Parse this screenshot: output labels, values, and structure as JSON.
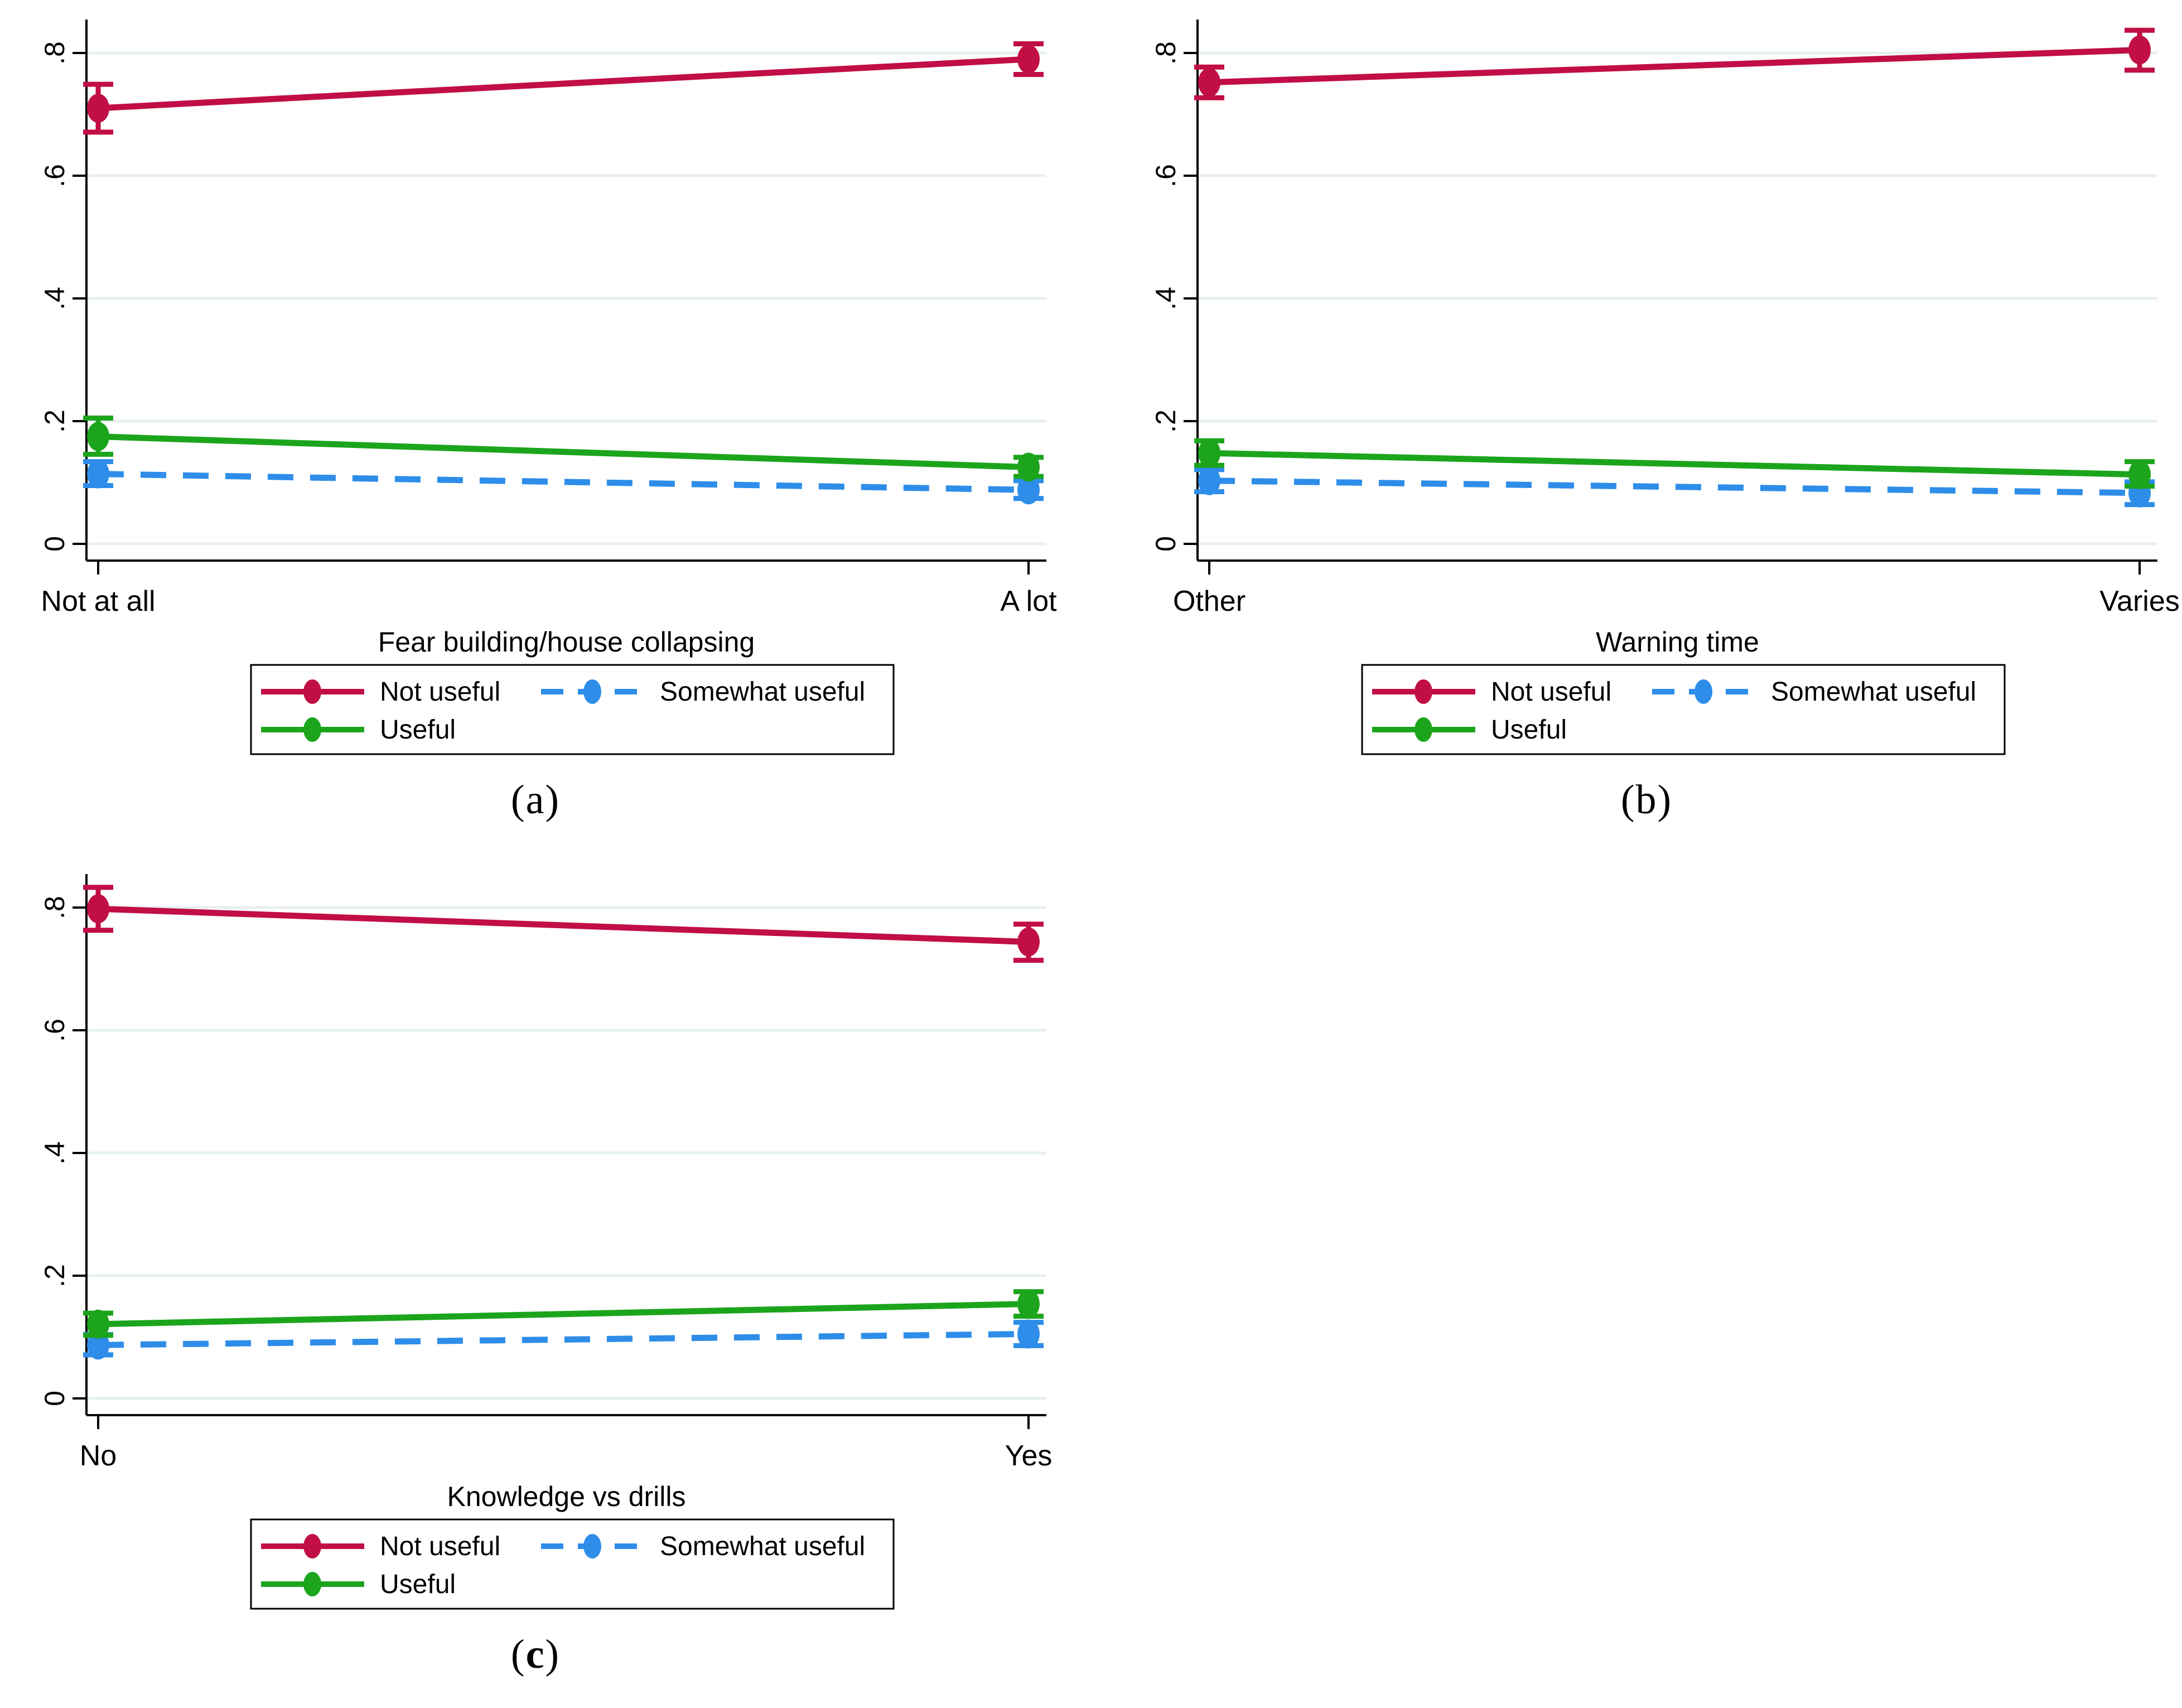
{
  "figure": {
    "background": "#ffffff",
    "captions": [
      {
        "pre": "(",
        "letter": "a",
        "post": ")",
        "bold_letter": false
      },
      {
        "pre": "(",
        "letter": "b",
        "post": ")",
        "bold_letter": false
      },
      {
        "pre": "(",
        "letter": "c",
        "post": ")",
        "bold_letter": true
      }
    ],
    "colors": {
      "axis": "#000000",
      "grid": "#e7eff2",
      "legend_border": "#000000",
      "not_useful": "#c10e45",
      "somewhat_useful": "#2e8de9",
      "useful": "#1ca51c"
    }
  },
  "chart_data": [
    {
      "type": "line",
      "title": "",
      "xlabel": "Fear building/house collapsing",
      "ylabel": "",
      "ylim": [
        0,
        0.855
      ],
      "yticks": [
        0,
        0.2,
        0.4,
        0.6,
        0.8
      ],
      "ytick_labels": [
        "0",
        ".2",
        ".4",
        ".6",
        ".8"
      ],
      "categories": [
        "Not at all",
        "A lot"
      ],
      "grid": true,
      "legend_position": "below-center",
      "legend_rows": [
        [
          0,
          1
        ],
        [
          2
        ]
      ],
      "series": [
        {
          "name": "Not useful",
          "color": "#c10e45",
          "style": "solid",
          "values": [
            0.71,
            0.79
          ],
          "ci_low": [
            0.671,
            0.765
          ],
          "ci_high": [
            0.749,
            0.815
          ]
        },
        {
          "name": "Somewhat useful",
          "color": "#2e8de9",
          "style": "dashed",
          "values": [
            0.114,
            0.088
          ],
          "ci_low": [
            0.095,
            0.074
          ],
          "ci_high": [
            0.134,
            0.103
          ]
        },
        {
          "name": "Useful",
          "color": "#1ca51c",
          "style": "solid",
          "values": [
            0.175,
            0.125
          ],
          "ci_low": [
            0.146,
            0.11
          ],
          "ci_high": [
            0.205,
            0.141
          ]
        }
      ]
    },
    {
      "type": "line",
      "title": "",
      "xlabel": "Warning time",
      "ylabel": "",
      "ylim": [
        0,
        0.855
      ],
      "yticks": [
        0,
        0.2,
        0.4,
        0.6,
        0.8
      ],
      "ytick_labels": [
        "0",
        ".2",
        ".4",
        ".6",
        ".8"
      ],
      "categories": [
        "Other",
        "Varies"
      ],
      "grid": true,
      "legend_position": "below-center",
      "legend_rows": [
        [
          0,
          1
        ],
        [
          2
        ]
      ],
      "series": [
        {
          "name": "Not useful",
          "color": "#c10e45",
          "style": "solid",
          "values": [
            0.752,
            0.805
          ],
          "ci_low": [
            0.727,
            0.772
          ],
          "ci_high": [
            0.777,
            0.837
          ]
        },
        {
          "name": "Somewhat useful",
          "color": "#2e8de9",
          "style": "dashed",
          "values": [
            0.103,
            0.083
          ],
          "ci_low": [
            0.085,
            0.064
          ],
          "ci_high": [
            0.121,
            0.101
          ]
        },
        {
          "name": "Useful",
          "color": "#1ca51c",
          "style": "solid",
          "values": [
            0.148,
            0.113
          ],
          "ci_low": [
            0.128,
            0.094
          ],
          "ci_high": [
            0.168,
            0.134
          ]
        }
      ]
    },
    {
      "type": "line",
      "title": "",
      "xlabel": "Knowledge vs drills",
      "ylabel": "",
      "ylim": [
        0,
        0.855
      ],
      "yticks": [
        0,
        0.2,
        0.4,
        0.6,
        0.8
      ],
      "ytick_labels": [
        "0",
        ".2",
        ".4",
        ".6",
        ".8"
      ],
      "categories": [
        "No",
        "Yes"
      ],
      "grid": true,
      "legend_position": "below-center",
      "legend_rows": [
        [
          0,
          1
        ],
        [
          2
        ]
      ],
      "series": [
        {
          "name": "Not useful",
          "color": "#c10e45",
          "style": "solid",
          "values": [
            0.798,
            0.744
          ],
          "ci_low": [
            0.763,
            0.714
          ],
          "ci_high": [
            0.833,
            0.773
          ]
        },
        {
          "name": "Somewhat useful",
          "color": "#2e8de9",
          "style": "dashed",
          "values": [
            0.087,
            0.105
          ],
          "ci_low": [
            0.071,
            0.086
          ],
          "ci_high": [
            0.104,
            0.124
          ]
        },
        {
          "name": "Useful",
          "color": "#1ca51c",
          "style": "solid",
          "values": [
            0.121,
            0.154
          ],
          "ci_low": [
            0.103,
            0.134
          ],
          "ci_high": [
            0.139,
            0.174
          ]
        }
      ]
    }
  ]
}
